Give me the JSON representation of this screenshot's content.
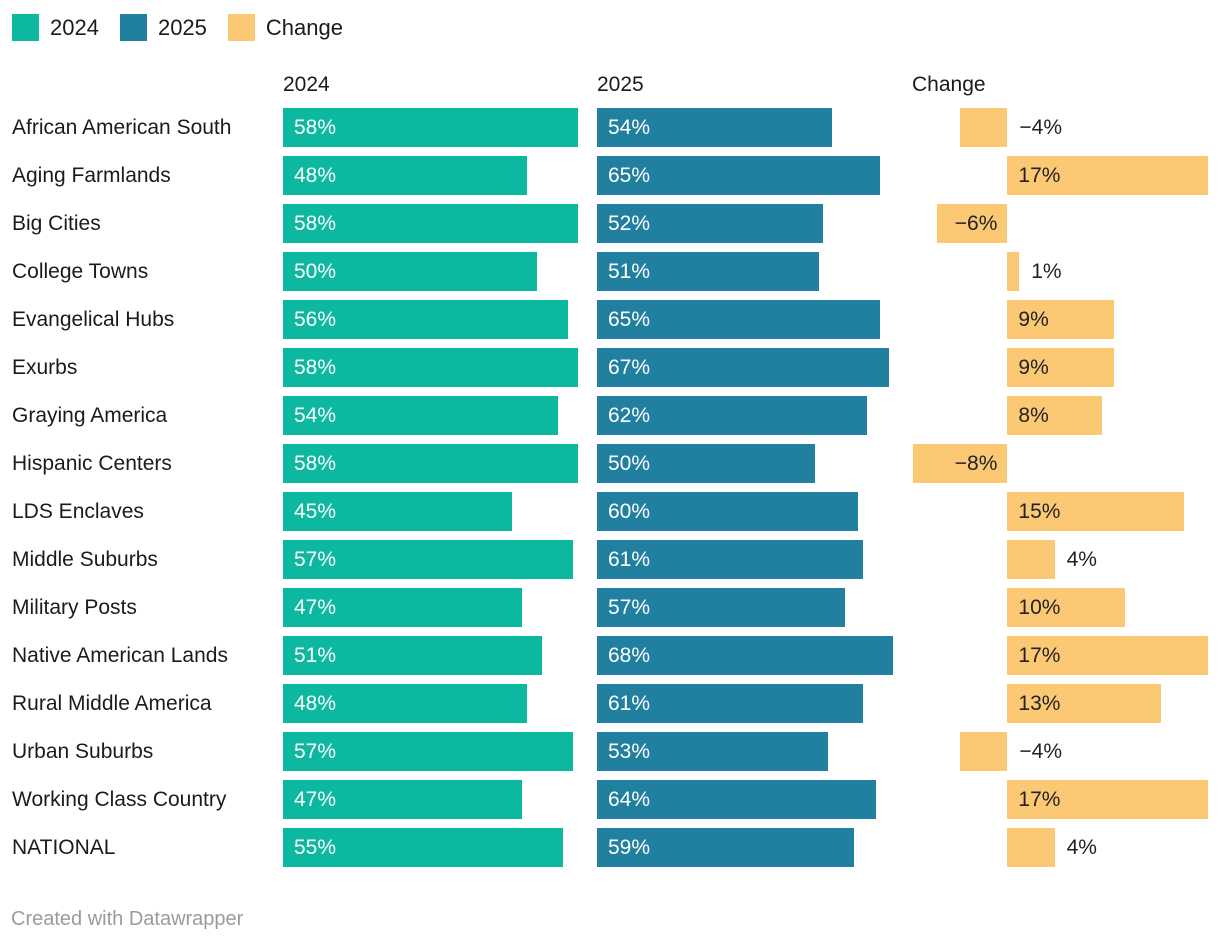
{
  "chart_data": {
    "type": "bar",
    "variant": "split-bars-three-columns",
    "title": "",
    "unit": "%",
    "legend_position": "top-left",
    "grid": false,
    "categories": [
      "African American South",
      "Aging Farmlands",
      "Big Cities",
      "College Towns",
      "Evangelical Hubs",
      "Exurbs",
      "Graying America",
      "Hispanic Centers",
      "LDS Enclaves",
      "Middle Suburbs",
      "Military Posts",
      "Native American Lands",
      "Rural Middle America",
      "Urban Suburbs",
      "Working Class Country",
      "NATIONAL"
    ],
    "series": [
      {
        "name": "2024",
        "color": "#0cb9a0",
        "values": [
          58,
          48,
          58,
          50,
          56,
          58,
          54,
          58,
          45,
          57,
          47,
          51,
          48,
          57,
          47,
          55
        ]
      },
      {
        "name": "2025",
        "color": "#2180a0",
        "values": [
          54,
          65,
          52,
          51,
          65,
          67,
          62,
          50,
          60,
          61,
          57,
          68,
          61,
          53,
          64,
          59
        ]
      },
      {
        "name": "Change",
        "color": "#fbc874",
        "values": [
          -4,
          17,
          -6,
          1,
          9,
          9,
          8,
          -8,
          15,
          4,
          10,
          17,
          13,
          -4,
          17,
          4
        ]
      }
    ],
    "change_axis": {
      "min": -8,
      "max": 17
    },
    "value_label_style": "inside bar start; short change bars labeled outside; minus sign U+2212"
  },
  "footer": {
    "credit": "Created with Datawrapper"
  }
}
